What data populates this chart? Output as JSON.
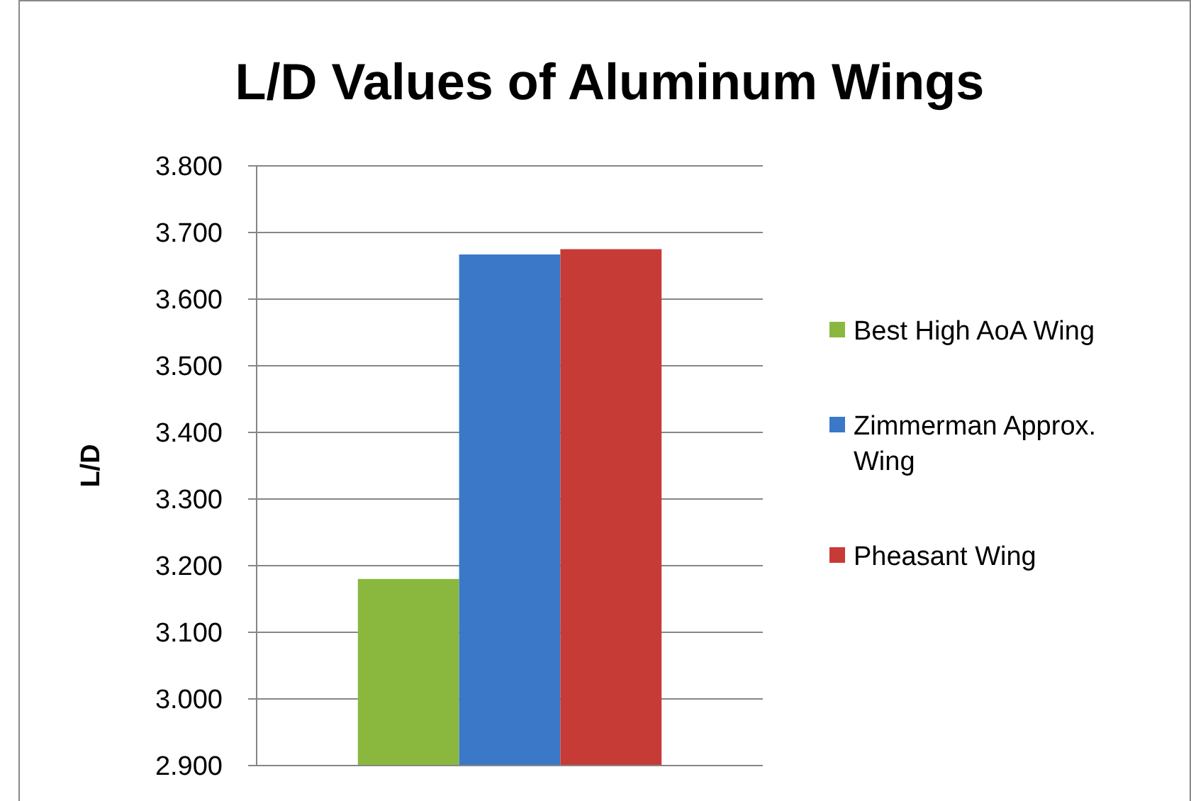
{
  "chart_data": {
    "type": "bar",
    "title": "L/D Values of Aluminum Wings",
    "ylabel": "L/D",
    "categories": [
      null
    ],
    "series": [
      {
        "name": "Best High AoA Wing",
        "color": "#8ab83e",
        "values": [
          3.18
        ]
      },
      {
        "name": "Zimmerman Approx. Wing",
        "color": "#3b78c8",
        "values": [
          3.667
        ]
      },
      {
        "name": "Pheasant Wing",
        "color": "#c73b37",
        "values": [
          3.675
        ]
      }
    ],
    "ylim": [
      2.9,
      3.8
    ],
    "yticks": [
      {
        "value": 2.9,
        "label": "2.900"
      },
      {
        "value": 3.0,
        "label": "3.000"
      },
      {
        "value": 3.1,
        "label": "3.100"
      },
      {
        "value": 3.2,
        "label": "3.200"
      },
      {
        "value": 3.3,
        "label": "3.300"
      },
      {
        "value": 3.4,
        "label": "3.400"
      },
      {
        "value": 3.5,
        "label": "3.500"
      },
      {
        "value": 3.6,
        "label": "3.600"
      },
      {
        "value": 3.7,
        "label": "3.700"
      },
      {
        "value": 3.8,
        "label": "3.800"
      }
    ],
    "grid": "y",
    "legend": "right"
  }
}
